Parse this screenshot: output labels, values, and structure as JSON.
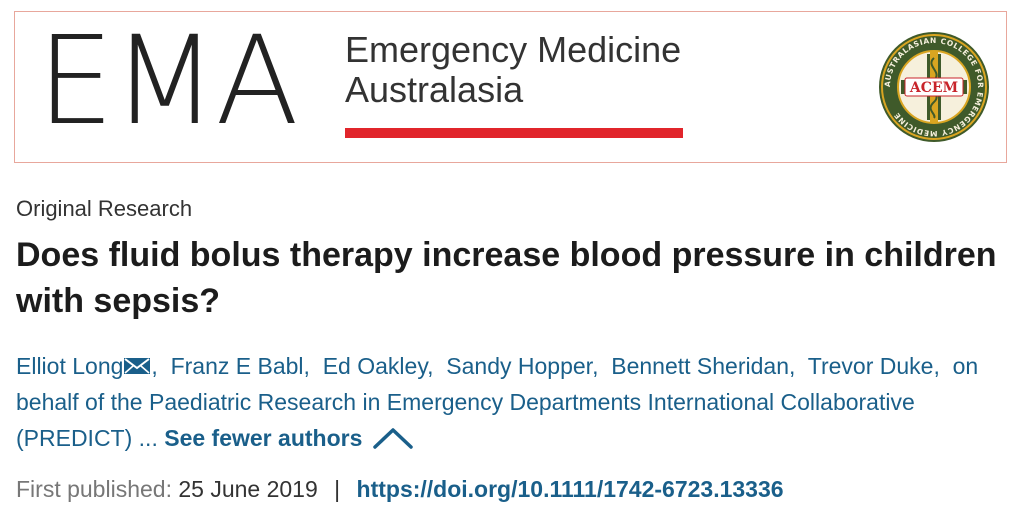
{
  "banner": {
    "logo_letters": "EMA",
    "journal_name_line1": "Emergency Medicine",
    "journal_name_line2": "Australasia",
    "seal_abbrev": "ACEM",
    "seal_ring_text": "AUSTRALASIAN COLLEGE FOR EMERGENCY MEDICINE",
    "colors": {
      "border": "#e8a79c",
      "rule": "#e1252b",
      "seal_green": "#3f5a2a",
      "seal_gold": "#d9a521",
      "seal_red": "#c8242b"
    }
  },
  "article": {
    "type": "Original Research",
    "title": "Does fluid bolus therapy increase blood pressure in children with sepsis?",
    "authors": [
      {
        "name": "Elliot Long",
        "corresponding": true
      },
      {
        "name": "Franz E Babl"
      },
      {
        "name": "Ed Oakley"
      },
      {
        "name": "Sandy Hopper"
      },
      {
        "name": "Bennett Sheridan"
      },
      {
        "name": "Trevor Duke"
      },
      {
        "name": "on behalf of the Paediatric Research in Emergency Departments International Collaborative (PREDICT)"
      }
    ],
    "ellipsis": "...",
    "see_fewer_label": "See fewer authors",
    "first_published_label": "First published:",
    "first_published_date": "25 June 2019",
    "separator": "|",
    "doi": "https://doi.org/10.1111/1742-6723.13336",
    "link_color": "#1a5f8a"
  }
}
